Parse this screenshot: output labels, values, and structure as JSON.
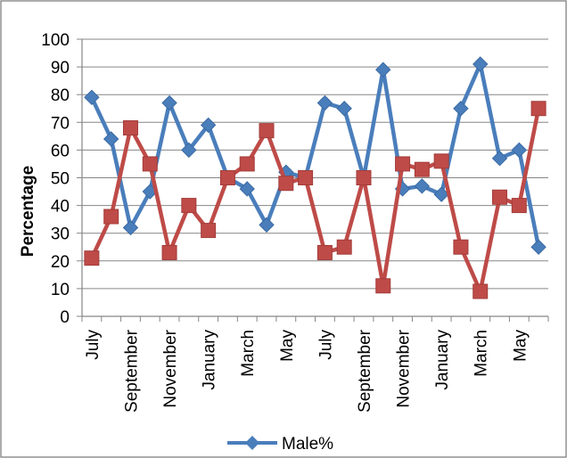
{
  "chart_data": {
    "type": "line",
    "title": "",
    "xlabel": "",
    "ylabel": "Percentage",
    "ylim": [
      0,
      100
    ],
    "yticks": [
      0,
      10,
      20,
      30,
      40,
      50,
      60,
      70,
      80,
      90,
      100
    ],
    "grid": true,
    "legend_position": "bottom",
    "x": [
      "July",
      "August",
      "September",
      "October",
      "November",
      "December",
      "January",
      "February",
      "March",
      "April",
      "May",
      "June",
      "July",
      "August",
      "September",
      "October",
      "November",
      "December",
      "January",
      "February",
      "March",
      "April",
      "May",
      "June"
    ],
    "x_tick_labels_shown": [
      "July",
      "September",
      "November",
      "January",
      "March",
      "May",
      "July",
      "September",
      "November",
      "January",
      "March",
      "May"
    ],
    "series": [
      {
        "name": "Male%",
        "color": "#4a7ebb",
        "marker": "diamond",
        "values": [
          79,
          64,
          32,
          45,
          77,
          60,
          69,
          50,
          46,
          33,
          52,
          50,
          77,
          75,
          50,
          89,
          46,
          47,
          44,
          75,
          91,
          57,
          60,
          25
        ]
      },
      {
        "name": "",
        "color": "#be4b48",
        "marker": "square",
        "values": [
          21,
          36,
          68,
          55,
          23,
          40,
          31,
          50,
          55,
          67,
          48,
          50,
          23,
          25,
          50,
          11,
          55,
          53,
          56,
          25,
          9,
          43,
          40,
          75
        ]
      }
    ]
  }
}
